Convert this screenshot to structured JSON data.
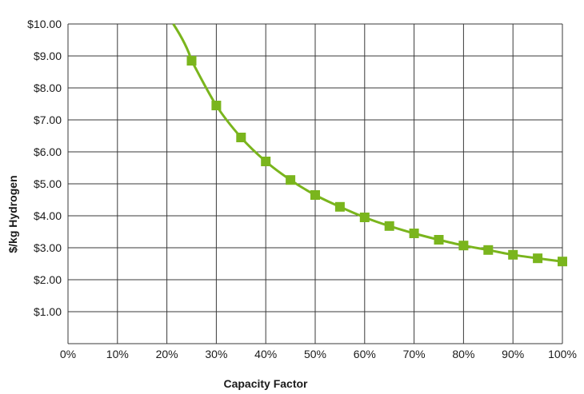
{
  "chart_data": {
    "type": "line",
    "title": "",
    "xlabel": "Capacity Factor",
    "ylabel": "$/kg Hydrogen",
    "xlim": [
      0,
      100
    ],
    "ylim": [
      0,
      10
    ],
    "x_ticks": [
      0,
      10,
      20,
      30,
      40,
      50,
      60,
      70,
      80,
      90,
      100
    ],
    "x_tick_labels": [
      "0%",
      "10%",
      "20%",
      "30%",
      "40%",
      "50%",
      "60%",
      "70%",
      "80%",
      "90%",
      "100%"
    ],
    "y_ticks": [
      1,
      2,
      3,
      4,
      5,
      6,
      7,
      8,
      9,
      10
    ],
    "y_tick_labels": [
      "$1.00",
      "$2.00",
      "$3.00",
      "$4.00",
      "$5.00",
      "$6.00",
      "$7.00",
      "$8.00",
      "$9.00",
      "$10.00"
    ],
    "grid": true,
    "legend": "none",
    "series": [
      {
        "color": "#7ab51d",
        "marker": "square",
        "x": [
          25,
          30,
          35,
          40,
          45,
          50,
          55,
          60,
          65,
          70,
          75,
          80,
          85,
          90,
          95,
          100
        ],
        "y": [
          8.85,
          7.45,
          6.45,
          5.7,
          5.12,
          4.65,
          4.28,
          3.95,
          3.68,
          3.45,
          3.25,
          3.07,
          2.93,
          2.78,
          2.67,
          2.57
        ]
      }
    ]
  }
}
